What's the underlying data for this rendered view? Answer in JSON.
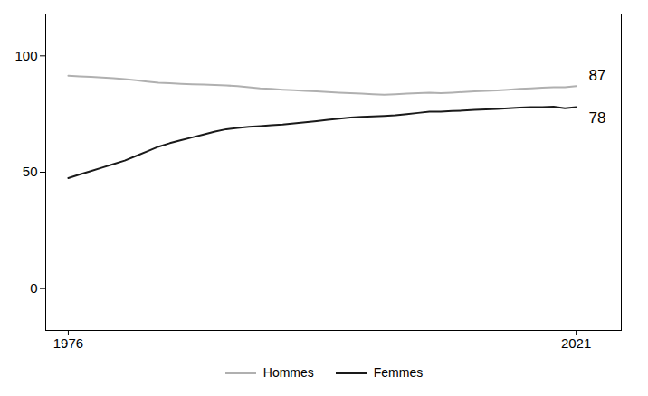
{
  "chart_data": {
    "type": "line",
    "x": [
      1976,
      1977,
      1978,
      1979,
      1980,
      1981,
      1982,
      1983,
      1984,
      1985,
      1986,
      1987,
      1988,
      1989,
      1990,
      1991,
      1992,
      1993,
      1994,
      1995,
      1996,
      1997,
      1998,
      1999,
      2000,
      2001,
      2002,
      2003,
      2004,
      2005,
      2006,
      2007,
      2008,
      2009,
      2010,
      2011,
      2012,
      2013,
      2014,
      2015,
      2016,
      2017,
      2018,
      2019,
      2020,
      2021
    ],
    "series": [
      {
        "name": "Hommes",
        "color": "#b0b0b0",
        "values": [
          91.5,
          91.2,
          91.0,
          90.7,
          90.4,
          90.0,
          89.5,
          89.0,
          88.5,
          88.3,
          88.0,
          87.8,
          87.7,
          87.5,
          87.3,
          87.0,
          86.5,
          86.0,
          85.8,
          85.5,
          85.3,
          85.0,
          84.8,
          84.5,
          84.2,
          84.0,
          83.8,
          83.5,
          83.3,
          83.5,
          83.8,
          84.0,
          84.2,
          84.0,
          84.2,
          84.5,
          84.8,
          85.0,
          85.2,
          85.5,
          85.8,
          86.0,
          86.3,
          86.5,
          86.5,
          87.0
        ]
      },
      {
        "name": "Femmes",
        "color": "#1a1a1a",
        "values": [
          47.5,
          49.0,
          50.5,
          52.0,
          53.5,
          55.0,
          57.0,
          59.0,
          61.0,
          62.5,
          63.8,
          65.0,
          66.2,
          67.5,
          68.5,
          69.0,
          69.5,
          69.8,
          70.2,
          70.5,
          71.0,
          71.5,
          72.0,
          72.5,
          73.0,
          73.5,
          73.8,
          74.0,
          74.2,
          74.5,
          75.0,
          75.5,
          76.0,
          76.0,
          76.3,
          76.5,
          76.8,
          77.0,
          77.2,
          77.5,
          77.8,
          78.0,
          78.0,
          78.2,
          77.5,
          78.0
        ]
      }
    ],
    "annotations": [
      {
        "text": "87",
        "x": 2021,
        "y": 87.0
      },
      {
        "text": "78",
        "x": 2021,
        "y": 78.0
      }
    ],
    "xlim": [
      1974,
      2025
    ],
    "xticks": [
      1976,
      2021
    ],
    "ylim": [
      -18,
      118
    ],
    "yticks": [
      0,
      50,
      100
    ],
    "grid": false,
    "legend": "bottom"
  }
}
